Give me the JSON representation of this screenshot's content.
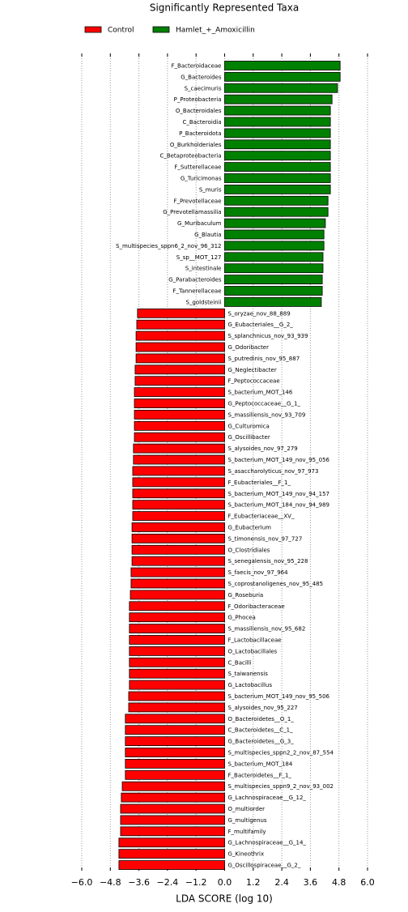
{
  "chart_data": {
    "type": "barh",
    "title": "Significantly Represented Taxa",
    "x_label": "LDA SCORE (log 10)",
    "categories": [
      "F_Bacteroidaceae",
      "G_Bacteroides",
      "S_caecimuris",
      "P_Proteobacteria",
      "O_Bacteroidales",
      "C_Bacteroidia",
      "P_Bacteroidota",
      "O_Burkholderiales",
      "C_Betaproteobacteria",
      "F_Sutterellaceae",
      "G_Turicimonas",
      "S_muris",
      "F_Prevotellaceae",
      "G_Prevotellamassilia",
      "G_Muribaculum",
      "G_Blautia",
      "S_multispecies_sppn6_2_nov_96_312",
      "S_sp__MOT_127",
      "S_intestinale",
      "G_Parabacteroides",
      "F_Tannerellaceae",
      "S_goldsteinii",
      "S_oryzae_nov_88_889",
      "G_Eubacteriales__G_2_",
      "S_splanchnicus_nov_93_939",
      "G_Odoribacter",
      "S_putredinis_nov_95_887",
      "G_Neglectibacter",
      "F_Peptococcaceae",
      "S_bacterium_MOT_146",
      "G_Peptococcaceae__G_1_",
      "S_massiliensis_nov_93_709",
      "G_Culturomica",
      "G_Oscillibacter",
      "S_alysoides_nov_97_279",
      "S_bacterium_MOT_149_nov_95_056",
      "S_asaccharolyticus_nov_97_973",
      "F_Eubacteriales__F_1_",
      "S_bacterium_MOT_149_nov_94_157",
      "S_bacterium_MOT_184_nov_94_989",
      "F_Eubacteriaceae__XV_",
      "G_Eubacterium",
      "S_timonensis_nov_97_727",
      "O_Clostridiales",
      "S_senegalensis_nov_95_228",
      "S_faecis_nov_97_964",
      "S_coprostanoligenes_nov_95_485",
      "G_Roseburia",
      "F_Odoribacteraceae",
      "G_Phocea",
      "S_massiliensis_nov_95_682",
      "F_Lactobacillaceae",
      "O_Lactobacillales",
      "C_Bacilli",
      "S_taiwanensis",
      "G_Lactobacillus",
      "S_bacterium_MOT_149_nov_95_506",
      "S_alysoides_nov_95_227",
      "O_Bacteroidetes__O_1_",
      "C_Bacteroidetes__C_1_",
      "G_Bacteroidetes__G_3_",
      "S_multispecies_sppn2_2_nov_87_554",
      "S_bacterium_MOT_184",
      "F_Bacteroidetes__F_1_",
      "S_multispecies_sppn9_2_nov_93_002",
      "G_Lachnospiraceae__G_12_",
      "O_multiorder",
      "G_multigenus",
      "F_multifamily",
      "G_Lachnospiraceae__G_14_",
      "G_Kineothrix",
      "G_Oscillospiraceae__G_2_"
    ],
    "series": [
      {
        "name": "Control",
        "color": "#ff0000",
        "values": [
          null,
          null,
          null,
          null,
          null,
          null,
          null,
          null,
          null,
          null,
          null,
          null,
          null,
          null,
          null,
          null,
          null,
          null,
          null,
          null,
          null,
          null,
          -3.66,
          -3.69,
          -3.72,
          -3.72,
          -3.72,
          -3.76,
          -3.76,
          -3.79,
          -3.79,
          -3.79,
          -3.79,
          -3.79,
          -3.83,
          -3.83,
          -3.86,
          -3.86,
          -3.86,
          -3.86,
          -3.86,
          -3.89,
          -3.89,
          -3.89,
          -3.89,
          -3.93,
          -3.93,
          -3.96,
          -4.0,
          -4.0,
          -4.0,
          -4.0,
          -4.0,
          -4.0,
          -4.0,
          -4.0,
          -4.03,
          -4.03,
          -4.17,
          -4.17,
          -4.17,
          -4.17,
          -4.17,
          -4.17,
          -4.3,
          -4.34,
          -4.37,
          -4.37,
          -4.37,
          -4.44,
          -4.44,
          -4.44
        ]
      },
      {
        "name": "Hamlet_+_Amoxicillin",
        "color": "#008000",
        "values": [
          4.85,
          4.85,
          4.74,
          4.51,
          4.44,
          4.44,
          4.44,
          4.44,
          4.44,
          4.44,
          4.44,
          4.44,
          4.34,
          4.34,
          4.23,
          4.17,
          4.17,
          4.13,
          4.13,
          4.1,
          4.1,
          4.06,
          null,
          null,
          null,
          null,
          null,
          null,
          null,
          null,
          null,
          null,
          null,
          null,
          null,
          null,
          null,
          null,
          null,
          null,
          null,
          null,
          null,
          null,
          null,
          null,
          null,
          null,
          null,
          null,
          null,
          null,
          null,
          null,
          null,
          null,
          null,
          null,
          null,
          null,
          null,
          null,
          null,
          null,
          null,
          null,
          null,
          null,
          null,
          null,
          null,
          null
        ]
      }
    ],
    "xlim": [
      -6.0,
      6.0
    ],
    "xticks": [
      {
        "value": -6.0,
        "label": "−6.0"
      },
      {
        "value": -4.8,
        "label": "−4.8"
      },
      {
        "value": -3.6,
        "label": "−3.6"
      },
      {
        "value": -2.4,
        "label": "−2.4"
      },
      {
        "value": -1.2,
        "label": "−1.2"
      },
      {
        "value": 0.0,
        "label": "0.0"
      },
      {
        "value": 1.2,
        "label": "1.2"
      },
      {
        "value": 2.4,
        "label": "2.4"
      },
      {
        "value": 3.6,
        "label": "3.6"
      },
      {
        "value": 4.8,
        "label": "4.8"
      },
      {
        "value": 6.0,
        "label": "6.0"
      }
    ],
    "grid": true,
    "legend": "top"
  }
}
